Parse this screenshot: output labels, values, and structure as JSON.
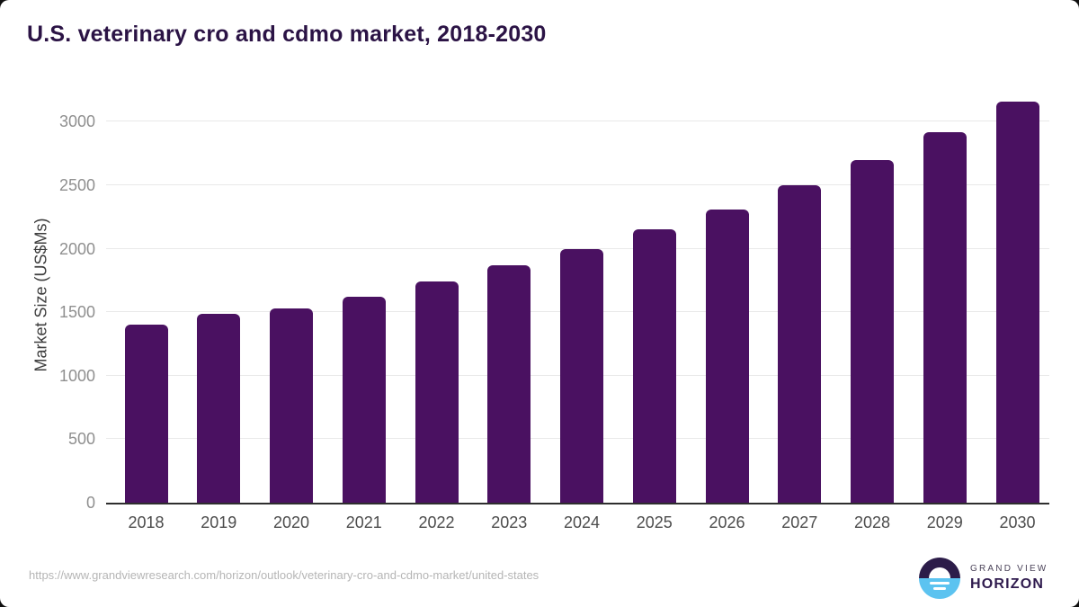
{
  "header": {
    "title": "U.S. veterinary cro and cdmo market, 2018-2030"
  },
  "chart_data": {
    "type": "bar",
    "title": "U.S. veterinary cro and cdmo market, 2018-2030",
    "categories": [
      "2018",
      "2019",
      "2020",
      "2021",
      "2022",
      "2023",
      "2024",
      "2025",
      "2026",
      "2027",
      "2028",
      "2029",
      "2030"
    ],
    "values": [
      1400,
      1490,
      1530,
      1620,
      1740,
      1870,
      2000,
      2150,
      2310,
      2500,
      2700,
      2920,
      3160
    ],
    "xlabel": "",
    "ylabel": "Market Size (US$Ms)",
    "ylim": [
      0,
      3250
    ],
    "yticks": [
      0,
      500,
      1000,
      1500,
      2000,
      2500,
      3000
    ],
    "grid": true,
    "legend": false,
    "bar_color": "#4a1161"
  },
  "footer": {
    "source_url": "https://www.grandviewresearch.com/horizon/outlook/veterinary-cro-and-cdmo-market/united-states",
    "logo": {
      "line1": "GRAND VIEW",
      "line2": "HORIZON"
    }
  },
  "colors": {
    "title": "#2b1345",
    "bar": "#4a1161",
    "gridline": "#e9e9e9",
    "axis_line": "#2e2e2e",
    "y_tick_label": "#8f8f8f",
    "x_tick_label": "#4c4c4c",
    "y_axis_title": "#3d3d3d",
    "source_url": "#b5b5b5",
    "logo_navy": "#2c1c49",
    "logo_blue": "#5cc3f0",
    "logo_text": "#2f1b4e"
  }
}
